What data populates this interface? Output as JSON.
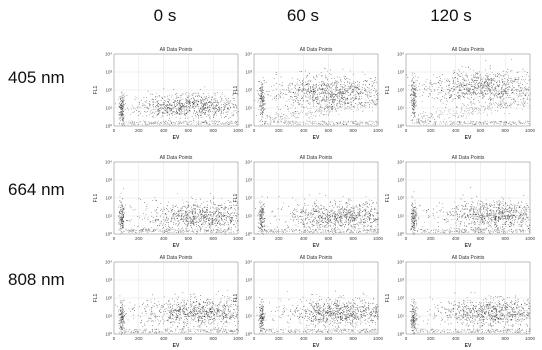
{
  "column_headers": [
    "0 s",
    "60 s",
    "120 s"
  ],
  "row_labels": [
    "405 nm",
    "664 nm",
    "808 nm"
  ],
  "chart_data": {
    "type": "scatter",
    "panel_title": "All Data Points",
    "xlabel": "EV",
    "ylabel": "FL1",
    "xlim": [
      0,
      1000
    ],
    "ylim_log10": [
      0,
      4
    ],
    "x_ticks": [
      "0",
      "200",
      "400",
      "600",
      "800",
      "1000"
    ],
    "y_ticks": [
      "10⁰",
      "10¹",
      "10²",
      "10³",
      "10⁴"
    ],
    "point_color": "#222222",
    "panels": [
      {
        "row": "405 nm",
        "col": "0 s",
        "cluster_center": [
          620,
          1.1
        ],
        "spread": [
          230,
          0.35
        ],
        "low_cluster_x": 60,
        "shift": 0,
        "tail": false
      },
      {
        "row": "405 nm",
        "col": "60 s",
        "cluster_center": [
          620,
          1.9
        ],
        "spread": [
          230,
          0.45
        ],
        "low_cluster_x": 60,
        "shift": 1,
        "tail": true
      },
      {
        "row": "405 nm",
        "col": "120 s",
        "cluster_center": [
          620,
          2.2
        ],
        "spread": [
          230,
          0.45
        ],
        "low_cluster_x": 60,
        "shift": 1.2,
        "tail": true
      },
      {
        "row": "664 nm",
        "col": "0 s",
        "cluster_center": [
          720,
          1.0
        ],
        "spread": [
          230,
          0.4
        ],
        "low_cluster_x": 60,
        "shift": 0,
        "tail": false
      },
      {
        "row": "664 nm",
        "col": "60 s",
        "cluster_center": [
          720,
          1.0
        ],
        "spread": [
          230,
          0.4
        ],
        "low_cluster_x": 60,
        "shift": 0,
        "tail": false
      },
      {
        "row": "664 nm",
        "col": "120 s",
        "cluster_center": [
          720,
          1.1
        ],
        "spread": [
          230,
          0.4
        ],
        "low_cluster_x": 60,
        "shift": 0,
        "tail": false
      },
      {
        "row": "808 nm",
        "col": "0 s",
        "cluster_center": [
          700,
          1.2
        ],
        "spread": [
          230,
          0.4
        ],
        "low_cluster_x": 60,
        "shift": 0,
        "tail": false
      },
      {
        "row": "808 nm",
        "col": "60 s",
        "cluster_center": [
          700,
          1.2
        ],
        "spread": [
          230,
          0.4
        ],
        "low_cluster_x": 60,
        "shift": 0,
        "tail": false
      },
      {
        "row": "808 nm",
        "col": "120 s",
        "cluster_center": [
          700,
          1.2
        ],
        "spread": [
          230,
          0.4
        ],
        "low_cluster_x": 60,
        "shift": 0,
        "tail": false
      }
    ]
  }
}
